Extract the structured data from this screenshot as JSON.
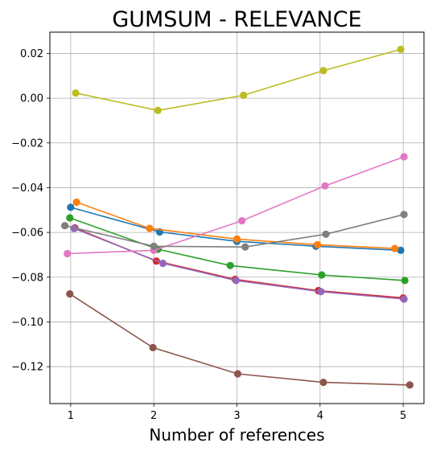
{
  "chart_data": {
    "type": "line",
    "title": "GUMSUM - RELEVANCE",
    "xlabel": "Number of references",
    "ylabel": "",
    "xlim": [
      0.75,
      5.25
    ],
    "ylim": [
      -0.1365,
      0.0295
    ],
    "xticks": [
      1,
      2,
      3,
      4,
      5
    ],
    "yticks": [
      0.02,
      0.0,
      -0.02,
      -0.04,
      -0.06,
      -0.08,
      -0.1,
      -0.12
    ],
    "ytick_labels": [
      "0.02",
      "0.00",
      "−0.02",
      "−0.04",
      "−0.06",
      "−0.08",
      "−0.10",
      "−0.12"
    ],
    "grid": true,
    "series": [
      {
        "color": "#1f77b4",
        "x": [
          1.0,
          2.07,
          3.0,
          3.95,
          4.97
        ],
        "y": [
          -0.0488,
          -0.0598,
          -0.064,
          -0.0662,
          -0.068
        ]
      },
      {
        "color": "#ff7f0e",
        "x": [
          1.07,
          1.95,
          3.0,
          3.97,
          4.9
        ],
        "y": [
          -0.0465,
          -0.0582,
          -0.063,
          -0.0655,
          -0.0672
        ]
      },
      {
        "color": "#2ca02c",
        "x": [
          0.99,
          2.05,
          2.92,
          4.02,
          5.02
        ],
        "y": [
          -0.0535,
          -0.0675,
          -0.0748,
          -0.079,
          -0.0815
        ]
      },
      {
        "color": "#d62728",
        "x": [
          1.05,
          2.03,
          2.98,
          3.98,
          5.0
        ],
        "y": [
          -0.058,
          -0.0728,
          -0.081,
          -0.086,
          -0.0893
        ]
      },
      {
        "color": "#9467bd",
        "x": [
          1.04,
          2.11,
          2.99,
          4.01,
          5.01
        ],
        "y": [
          -0.0582,
          -0.0738,
          -0.0815,
          -0.0865,
          -0.0898
        ]
      },
      {
        "color": "#8c564b",
        "x": [
          0.99,
          1.99,
          3.01,
          4.04,
          5.08
        ],
        "y": [
          -0.0875,
          -0.1115,
          -0.1232,
          -0.127,
          -0.1282
        ]
      },
      {
        "color": "#e377c2",
        "x": [
          0.96,
          2.0,
          3.06,
          4.06,
          5.01
        ],
        "y": [
          -0.0695,
          -0.068,
          -0.0548,
          -0.0392,
          -0.0262
        ]
      },
      {
        "color": "#7f7f7f",
        "x": [
          0.93,
          2.0,
          3.1,
          4.07,
          5.01
        ],
        "y": [
          -0.057,
          -0.0662,
          -0.0665,
          -0.0608,
          -0.052
        ]
      },
      {
        "color": "#bcbd22",
        "x": [
          1.06,
          2.05,
          3.08,
          4.04,
          4.97
        ],
        "y": [
          0.0023,
          -0.0055,
          0.0013,
          0.0123,
          0.0218
        ]
      }
    ]
  }
}
